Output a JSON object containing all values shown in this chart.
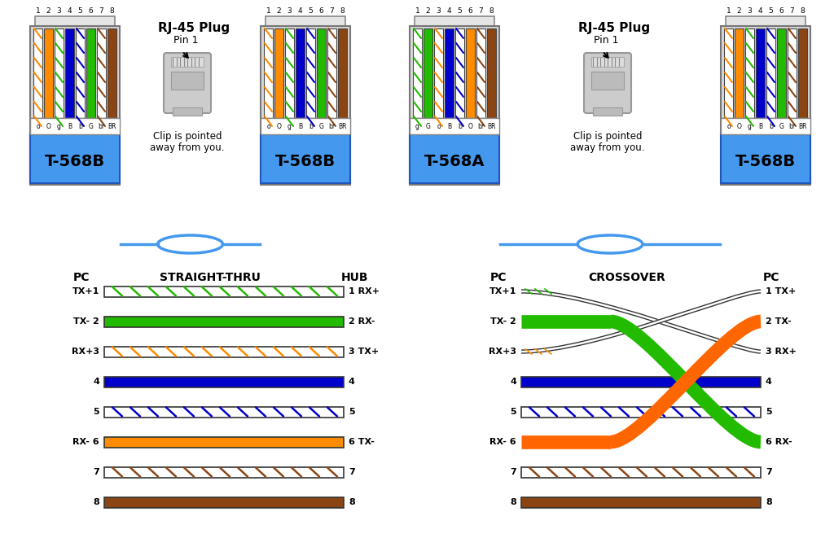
{
  "bg_color": "#ffffff",
  "568B_wire_colors": [
    "#ffffff",
    "#ff8c00",
    "#ffffff",
    "#0000cc",
    "#ffffff",
    "#22bb00",
    "#ffffff",
    "#8b4513"
  ],
  "568B_stripe_colors": [
    "#ff8c00",
    null,
    "#22bb00",
    null,
    "#0000cc",
    null,
    "#8b4513",
    null
  ],
  "568A_wire_colors": [
    "#ffffff",
    "#22bb00",
    "#ffffff",
    "#0000cc",
    "#ffffff",
    "#ff8c00",
    "#ffffff",
    "#8b4513"
  ],
  "568A_stripe_colors": [
    "#22bb00",
    null,
    "#ff8c00",
    null,
    "#0000cc",
    null,
    "#8b4513",
    null
  ],
  "pin_labels_568B": [
    "o",
    "O",
    "g",
    "B",
    "b",
    "G",
    "br",
    "BR"
  ],
  "pin_labels_568A": [
    "g",
    "G",
    "o",
    "B",
    "b",
    "O",
    "br",
    "BR"
  ],
  "connector_blue": "#4499ee",
  "straight_left_labels": [
    "TX+1",
    "TX- 2",
    "RX+3",
    "4",
    "5",
    "RX- 6",
    "7",
    "8"
  ],
  "straight_right_labels": [
    "1 RX+",
    "2 RX-",
    "3 TX+",
    "4",
    "5",
    "6 TX-",
    "7",
    "8"
  ],
  "crossover_left_labels": [
    "TX+1",
    "TX- 2",
    "RX+3",
    "4",
    "5",
    "RX- 6",
    "7",
    "8"
  ],
  "crossover_right_labels": [
    "1 TX+",
    "2 TX-",
    "3 RX+",
    "4",
    "5",
    "6 RX-",
    "7",
    "8"
  ],
  "wire_colors_straight": [
    "#ffffff",
    "#22bb00",
    "#ffffff",
    "#0000cc",
    "#ffffff",
    "#ff8c00",
    "#ffffff",
    "#8b4513"
  ],
  "wire_stripes_straight": [
    "#22bb00",
    null,
    "#ff8c00",
    null,
    "#0000cc",
    null,
    "#8b4513",
    null
  ]
}
